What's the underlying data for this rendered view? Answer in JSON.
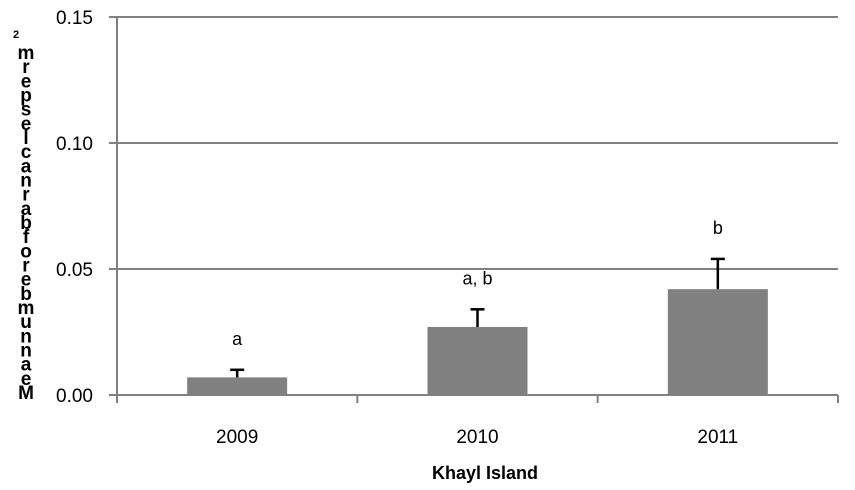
{
  "chart_data": {
    "type": "bar",
    "title": "",
    "xlabel": "Khayl Island",
    "ylabel": "Mean number of barnacles per m²",
    "ylabel_jumbled_chars": [
      "M",
      "e",
      "a",
      "n",
      "n",
      "u",
      "m",
      "b",
      "e",
      "r",
      "o",
      "f",
      "b",
      "a",
      "r",
      "n",
      "a",
      "c",
      "l",
      "e",
      "s",
      "p",
      "e",
      "r",
      "m"
    ],
    "ylabel_superscript": "2",
    "categories": [
      "2009",
      "2010",
      "2011"
    ],
    "values": [
      0.007,
      0.027,
      0.042
    ],
    "error_plus": [
      0.003,
      0.007,
      0.012
    ],
    "data_labels": [
      "a",
      "a, b",
      "b"
    ],
    "ylim": [
      0,
      0.15
    ],
    "yticks": [
      "0.00",
      "0.05",
      "0.10",
      "0.15"
    ],
    "ytick_values": [
      0,
      0.05,
      0.1,
      0.15
    ],
    "grid": true,
    "legend": "none",
    "colors": {
      "bar": "#808080",
      "axis": "#808080",
      "grid": "#808080",
      "error": "#000000"
    }
  }
}
